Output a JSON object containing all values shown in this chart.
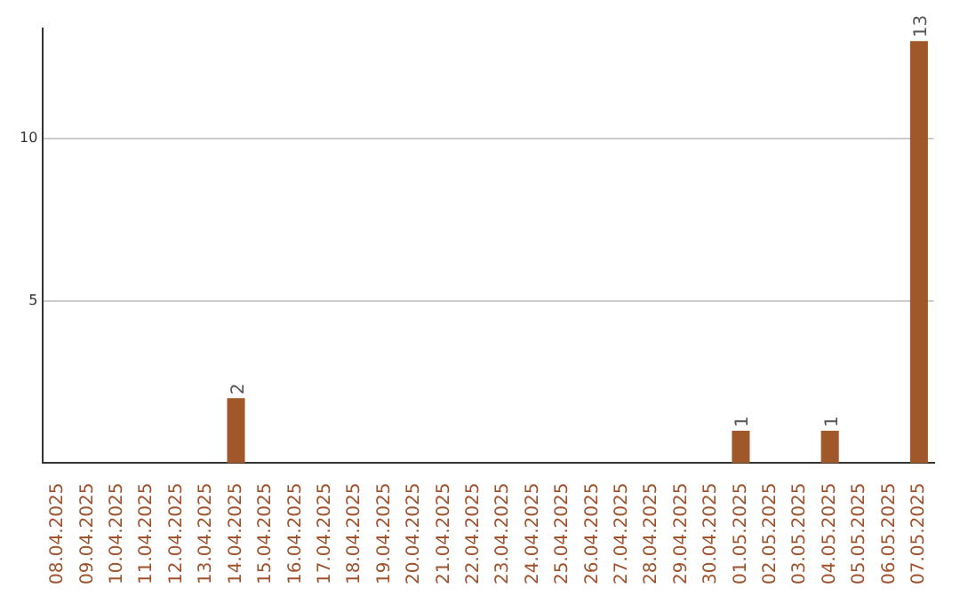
{
  "chart_data": {
    "type": "bar",
    "categories": [
      "08.04.2025",
      "09.04.2025",
      "10.04.2025",
      "11.04.2025",
      "12.04.2025",
      "13.04.2025",
      "14.04.2025",
      "15.04.2025",
      "16.04.2025",
      "17.04.2025",
      "18.04.2025",
      "19.04.2025",
      "20.04.2025",
      "21.04.2025",
      "22.04.2025",
      "23.04.2025",
      "24.04.2025",
      "25.04.2025",
      "26.04.2025",
      "27.04.2025",
      "28.04.2025",
      "29.04.2025",
      "30.04.2025",
      "01.05.2025",
      "02.05.2025",
      "03.05.2025",
      "04.05.2025",
      "05.05.2025",
      "06.05.2025",
      "07.05.2025"
    ],
    "values": [
      0,
      0,
      0,
      0,
      0,
      0,
      2,
      0,
      0,
      0,
      0,
      0,
      0,
      0,
      0,
      0,
      0,
      0,
      0,
      0,
      0,
      0,
      0,
      1,
      0,
      0,
      1,
      0,
      0,
      13
    ],
    "value_labels": [
      null,
      null,
      null,
      null,
      null,
      null,
      "2",
      null,
      null,
      null,
      null,
      null,
      null,
      null,
      null,
      null,
      null,
      null,
      null,
      null,
      null,
      null,
      null,
      "1",
      null,
      null,
      "1",
      null,
      null,
      "13"
    ],
    "color": "#a0582a",
    "ylim": [
      0,
      13.4
    ],
    "yticks": [
      5,
      10
    ],
    "grid": "y",
    "legend": false
  }
}
